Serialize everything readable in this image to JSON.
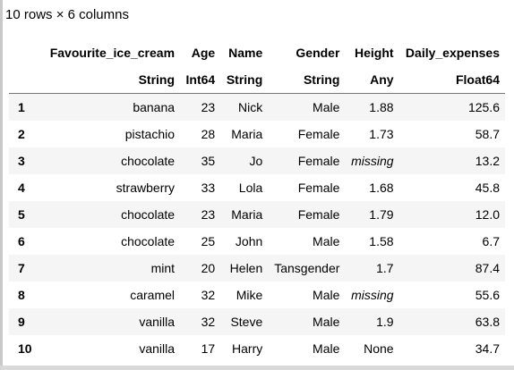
{
  "summary": "10 rows × 6 columns",
  "columns": [
    {
      "name": "Favourite_ice_cream",
      "type": "String"
    },
    {
      "name": "Age",
      "type": "Int64"
    },
    {
      "name": "Name",
      "type": "String"
    },
    {
      "name": "Gender",
      "type": "String"
    },
    {
      "name": "Height",
      "type": "Any"
    },
    {
      "name": "Daily_expenses",
      "type": "Float64"
    }
  ],
  "rows": [
    {
      "index": "1",
      "cells": [
        "banana",
        "23",
        "Nick",
        "Male",
        "1.88",
        "125.6"
      ]
    },
    {
      "index": "2",
      "cells": [
        "pistachio",
        "28",
        "Maria",
        "Female",
        "1.73",
        "58.7"
      ]
    },
    {
      "index": "3",
      "cells": [
        "chocolate",
        "35",
        "Jo",
        "Female",
        "missing",
        "13.2"
      ]
    },
    {
      "index": "4",
      "cells": [
        "strawberry",
        "33",
        "Lola",
        "Female",
        "1.68",
        "45.8"
      ]
    },
    {
      "index": "5",
      "cells": [
        "chocolate",
        "23",
        "Maria",
        "Female",
        "1.79",
        "12.0"
      ]
    },
    {
      "index": "6",
      "cells": [
        "chocolate",
        "25",
        "John",
        "Male",
        "1.58",
        "6.7"
      ]
    },
    {
      "index": "7",
      "cells": [
        "mint",
        "20",
        "Helen",
        "Tansgender",
        "1.7",
        "87.4"
      ]
    },
    {
      "index": "8",
      "cells": [
        "caramel",
        "32",
        "Mike",
        "Male",
        "missing",
        "55.6"
      ]
    },
    {
      "index": "9",
      "cells": [
        "vanilla",
        "32",
        "Steve",
        "Male",
        "1.9",
        "63.8"
      ]
    },
    {
      "index": "10",
      "cells": [
        "vanilla",
        "17",
        "Harry",
        "Male",
        "None",
        "34.7"
      ]
    }
  ],
  "missing_marker": "missing"
}
